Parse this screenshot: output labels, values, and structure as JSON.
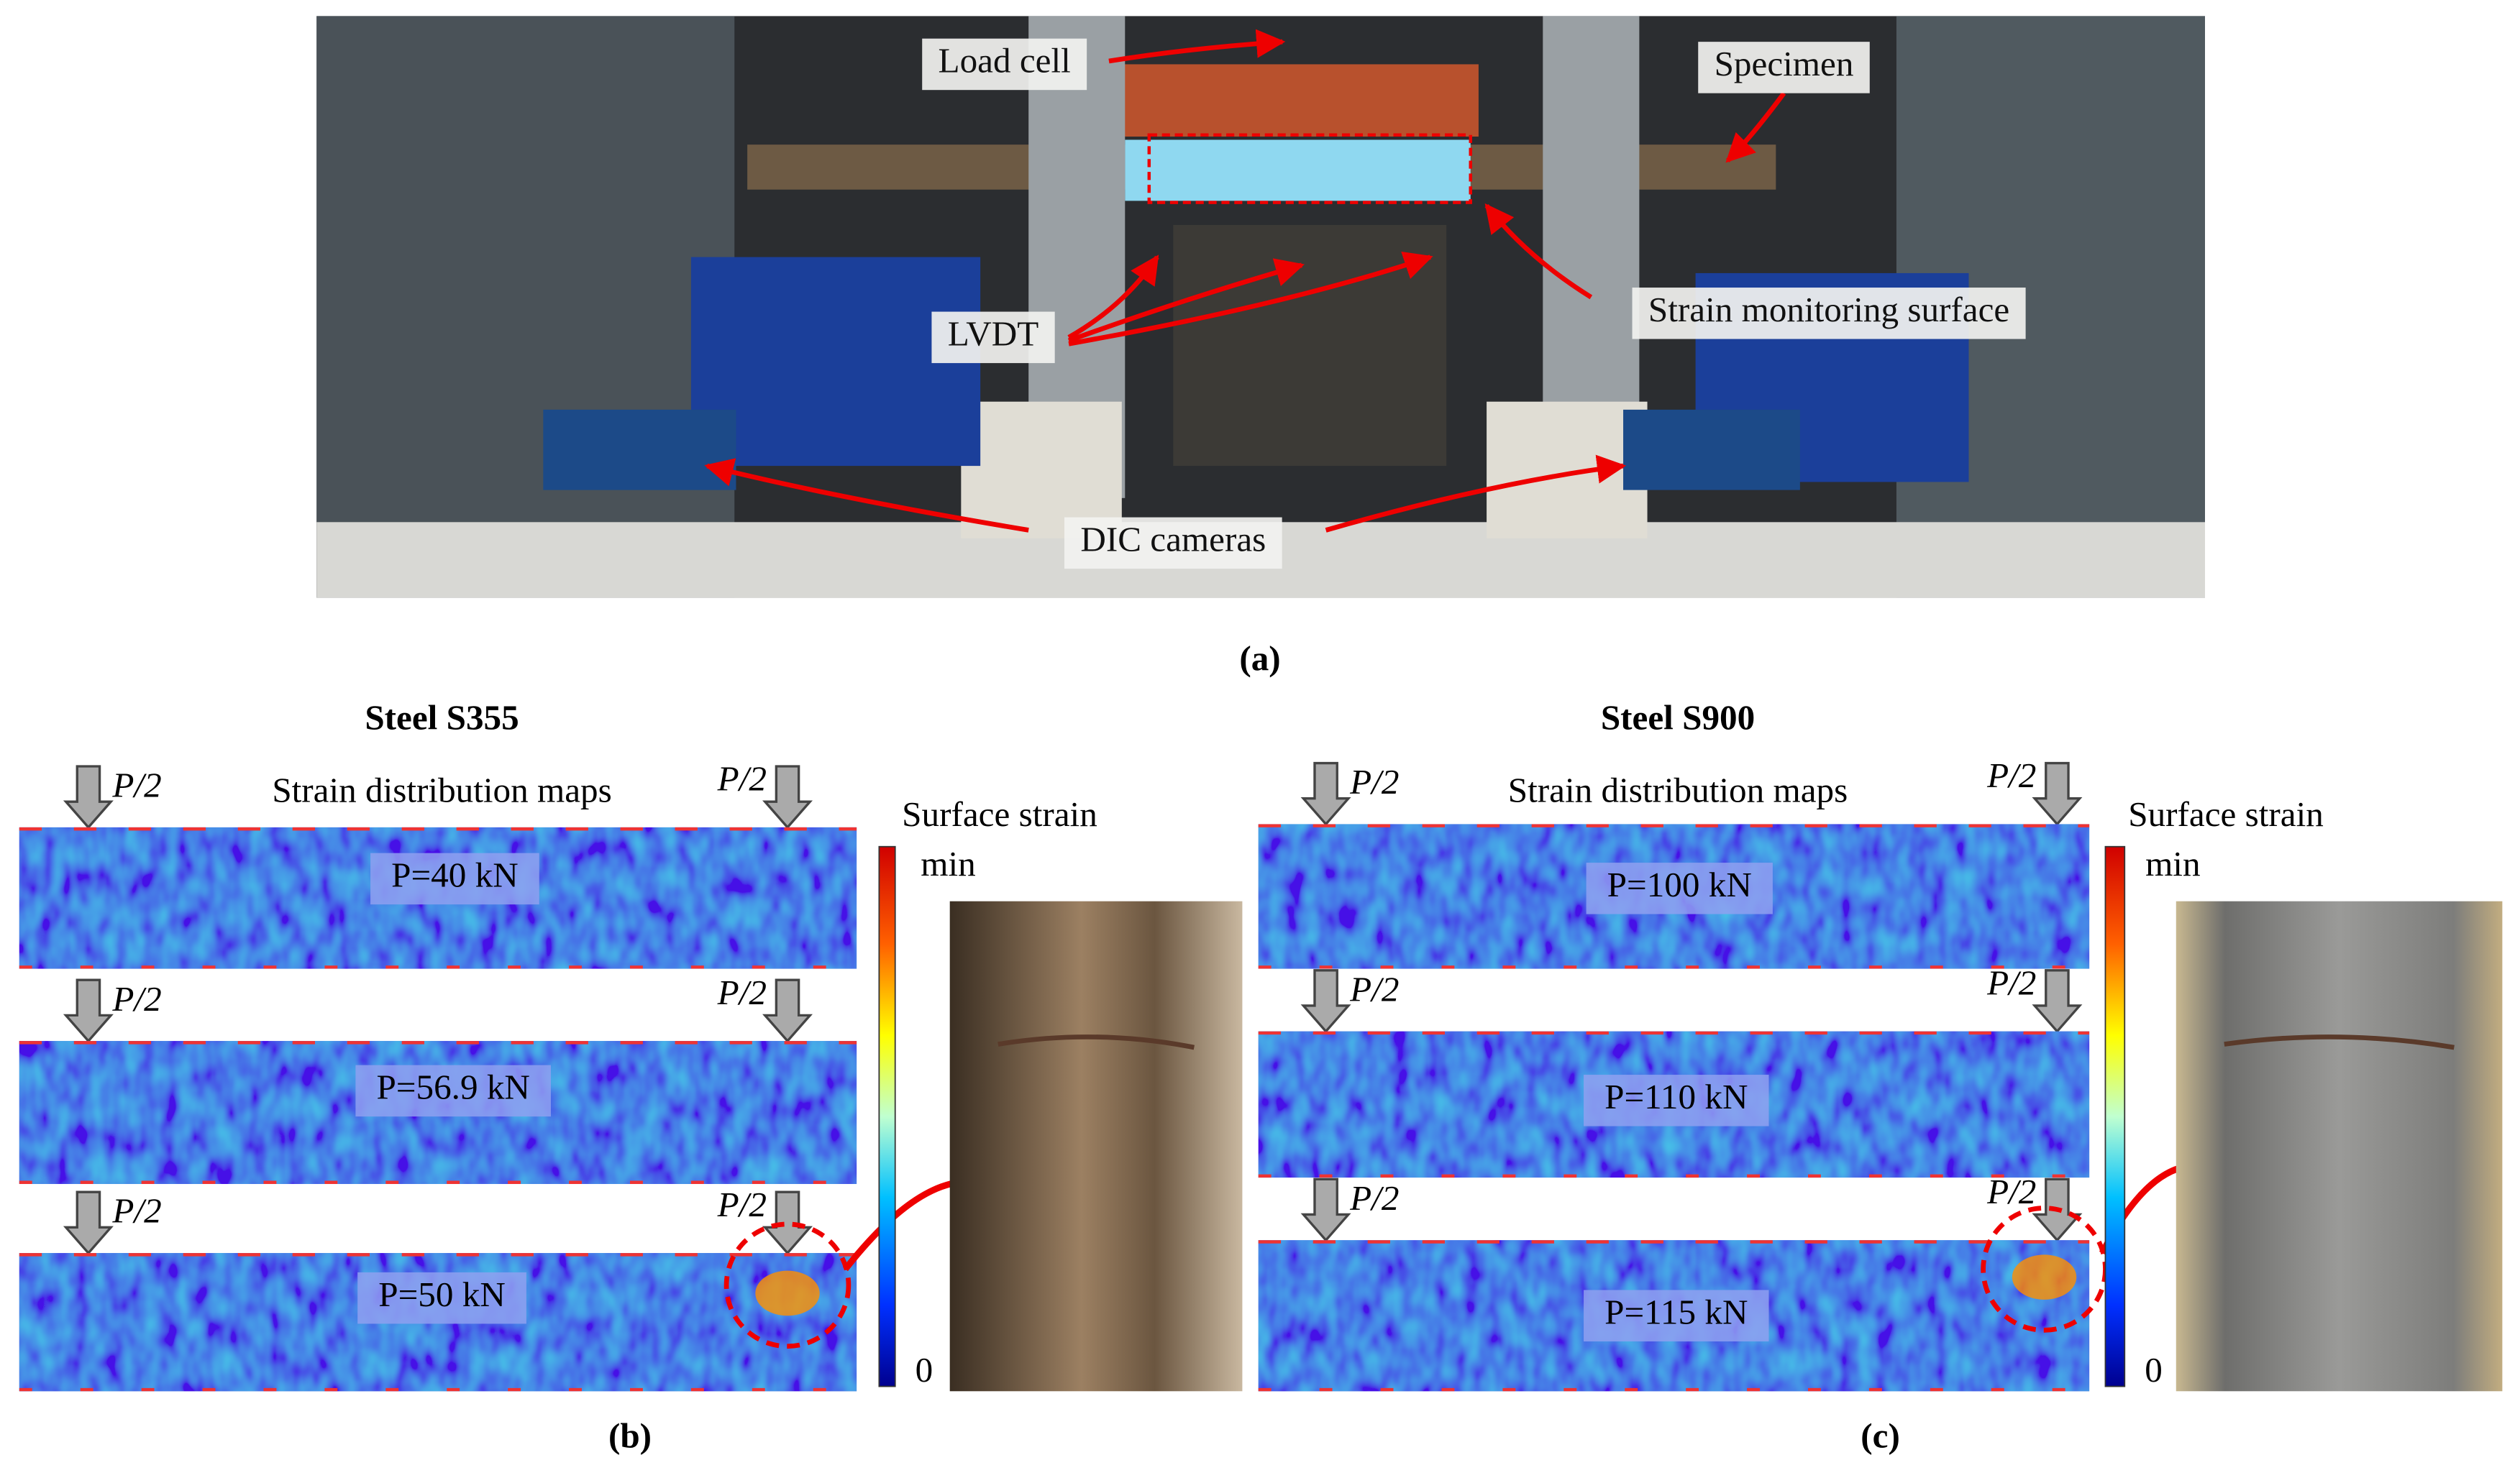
{
  "figure": {
    "panel_a": {
      "callouts": [
        "Load cell",
        "Specimen",
        "LVDT",
        "Strain monitoring surface",
        "DIC cameras"
      ],
      "caption": "(a)"
    },
    "panels": [
      {
        "title": "Steel S355",
        "subtitle": "Strain distribution maps",
        "load_label": "P/2",
        "colorbar_title": "Surface strain",
        "colorbar_top": "min",
        "colorbar_bottom": "0",
        "maps": [
          "P=40 kN",
          "P=56.9 kN",
          "P=50 kN"
        ],
        "caption": "(b)"
      },
      {
        "title": "Steel S900",
        "subtitle": "Strain distribution maps",
        "load_label": "P/2",
        "colorbar_title": "Surface strain",
        "colorbar_top": "min",
        "colorbar_bottom": "0",
        "maps": [
          "P=100 kN",
          "P=110 kN",
          "P=115 kN"
        ],
        "caption": "(c)"
      }
    ]
  }
}
